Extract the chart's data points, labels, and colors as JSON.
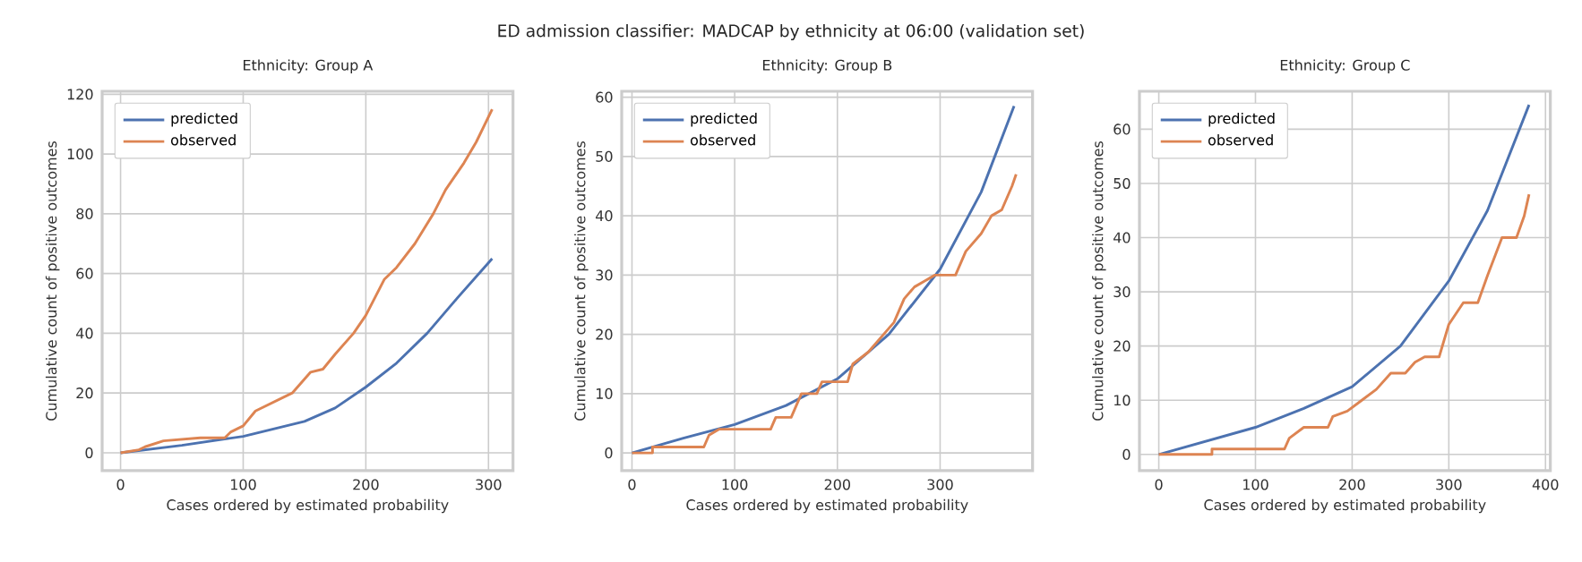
{
  "chart_data": [
    {
      "type": "line",
      "title": "Ethnicity: Group A",
      "xlabel": "Cases ordered by estimated probability",
      "ylabel": "Cumulative count of positive outcomes",
      "annotations": [
        "ED admission classifier: MADCAP by ethnicity at 06:00 (validation set)"
      ],
      "xlim": [
        -15,
        320
      ],
      "ylim": [
        -6,
        121
      ],
      "xticks": [
        0,
        100,
        200,
        300
      ],
      "yticks": [
        0,
        20,
        40,
        60,
        80,
        100,
        120
      ],
      "grid": true,
      "legend": "top left",
      "series": [
        {
          "name": "predicted",
          "color": "#4c72b0",
          "x": [
            0,
            50,
            100,
            150,
            175,
            200,
            225,
            250,
            275,
            303
          ],
          "values": [
            0,
            2.5,
            5.5,
            10.5,
            15,
            22,
            30,
            40,
            52,
            65
          ]
        },
        {
          "name": "observed",
          "color": "#dd8452",
          "x": [
            0,
            15,
            20,
            35,
            65,
            85,
            90,
            100,
            110,
            125,
            140,
            155,
            165,
            175,
            190,
            200,
            215,
            225,
            240,
            255,
            265,
            280,
            290,
            303
          ],
          "values": [
            0,
            1,
            2,
            4,
            5,
            5,
            7,
            9,
            14,
            17,
            20,
            27,
            28,
            33,
            40,
            46,
            58,
            62,
            70,
            80,
            88,
            97,
            104,
            115
          ]
        }
      ]
    },
    {
      "type": "line",
      "title": "Ethnicity: Group B",
      "xlabel": "Cases ordered by estimated probability",
      "ylabel": "Cumulative count of positive outcomes",
      "xlim": [
        -10,
        390
      ],
      "ylim": [
        -3,
        61
      ],
      "xticks": [
        0,
        100,
        200,
        300
      ],
      "yticks": [
        0,
        10,
        20,
        30,
        40,
        50,
        60
      ],
      "grid": true,
      "legend": "top left",
      "series": [
        {
          "name": "predicted",
          "color": "#4c72b0",
          "x": [
            0,
            50,
            100,
            150,
            200,
            250,
            300,
            340,
            372
          ],
          "values": [
            0,
            2.5,
            4.8,
            8,
            12.5,
            20,
            31,
            44,
            58.5
          ]
        },
        {
          "name": "observed",
          "color": "#dd8452",
          "x": [
            0,
            20,
            20,
            70,
            75,
            85,
            135,
            140,
            155,
            160,
            165,
            180,
            185,
            210,
            215,
            230,
            245,
            255,
            265,
            275,
            285,
            295,
            315,
            325,
            340,
            350,
            360,
            370,
            374
          ],
          "values": [
            0,
            0,
            1,
            1,
            3,
            4,
            4,
            6,
            6,
            8,
            10,
            10,
            12,
            12,
            15,
            17,
            20,
            22,
            26,
            28,
            29,
            30,
            30,
            34,
            37,
            40,
            41,
            45,
            47
          ]
        }
      ]
    },
    {
      "type": "line",
      "title": "Ethnicity: Group C",
      "xlabel": "Cases ordered by estimated probability",
      "ylabel": "Cumulative count of positive outcomes",
      "xlim": [
        -20,
        405
      ],
      "ylim": [
        -3,
        67
      ],
      "xticks": [
        0,
        100,
        200,
        300,
        400
      ],
      "yticks": [
        0,
        10,
        20,
        30,
        40,
        50,
        60
      ],
      "grid": true,
      "legend": "top left",
      "series": [
        {
          "name": "predicted",
          "color": "#4c72b0",
          "x": [
            0,
            50,
            100,
            150,
            200,
            250,
            300,
            340,
            383
          ],
          "values": [
            0,
            2.5,
            5,
            8.5,
            12.5,
            20,
            32,
            45,
            64.5
          ]
        },
        {
          "name": "observed",
          "color": "#dd8452",
          "x": [
            0,
            55,
            55,
            130,
            135,
            150,
            175,
            180,
            195,
            210,
            225,
            240,
            255,
            265,
            275,
            290,
            300,
            315,
            330,
            340,
            355,
            370,
            378,
            383
          ],
          "values": [
            0,
            0,
            1,
            1,
            3,
            5,
            5,
            7,
            8,
            10,
            12,
            15,
            15,
            17,
            18,
            18,
            24,
            28,
            28,
            33,
            40,
            40,
            44,
            48
          ]
        }
      ]
    }
  ]
}
